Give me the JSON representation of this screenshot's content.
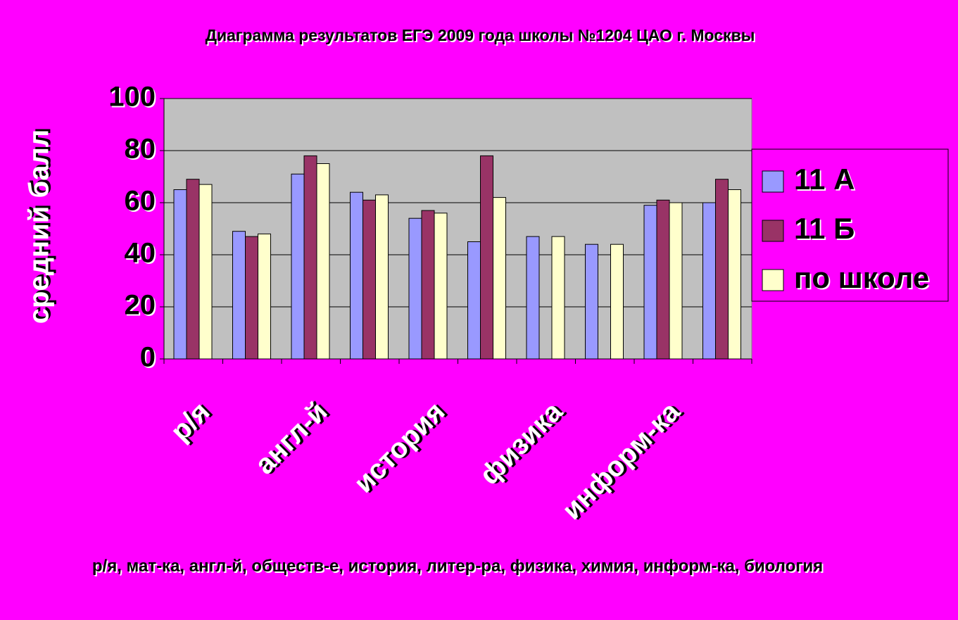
{
  "chart_data": {
    "type": "bar",
    "title": "Диаграмма результатов ЕГЭ 2009 года школы №1204 ЦАО г. Москвы",
    "x_label": "р/я, мат-ка, англ-й, обществ-е, история, литер-ра, физика, химия, информ-ка, биология",
    "y_label": "средний балл",
    "categories": [
      "р/я",
      null,
      "англ-й",
      null,
      "история",
      null,
      "физика",
      null,
      "информ-ка",
      null
    ],
    "series": [
      {
        "name": "11 А",
        "color": "#9999ff",
        "values": [
          65,
          49,
          71,
          64,
          54,
          45,
          47,
          44,
          59,
          60
        ]
      },
      {
        "name": "11 Б",
        "color": "#993366",
        "values": [
          69,
          47,
          78,
          61,
          57,
          78,
          null,
          null,
          61,
          69
        ]
      },
      {
        "name": "по школе",
        "color": "#ffffcc",
        "values": [
          67,
          48,
          75,
          63,
          56,
          62,
          47,
          44,
          60,
          65
        ]
      }
    ],
    "ylim": [
      0,
      100
    ],
    "yticks": [
      0,
      20,
      40,
      60,
      80,
      100
    ],
    "grid": true,
    "legend": "right"
  }
}
